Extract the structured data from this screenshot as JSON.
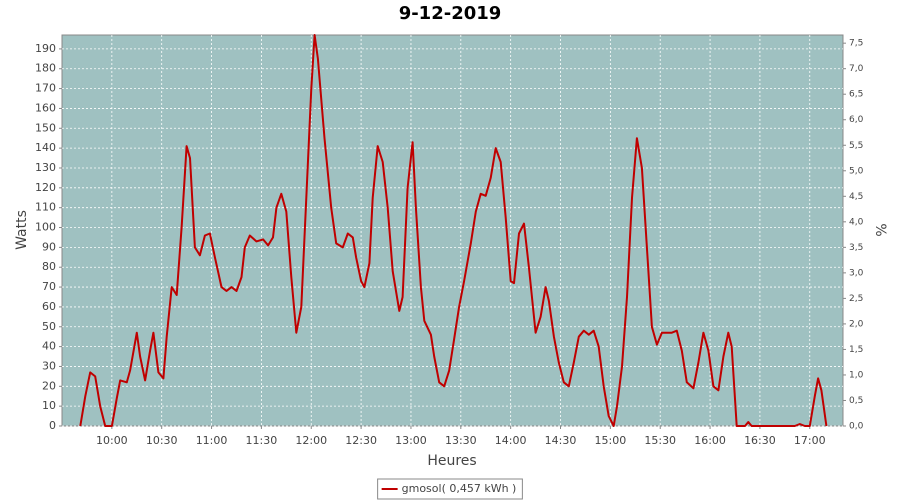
{
  "chart_data": {
    "type": "line",
    "title": "9-12-2019",
    "x_label": "Heures",
    "y_label": "Watts",
    "y2_label": "%",
    "x": [
      "09:41",
      "09:44",
      "09:47",
      "09:50",
      "09:53",
      "09:56",
      "10:00",
      "10:03",
      "10:05",
      "10:09",
      "10:11",
      "10:15",
      "10:17",
      "10:20",
      "10:23",
      "10:25",
      "10:28",
      "10:31",
      "10:33",
      "10:36",
      "10:39",
      "10:42",
      "10:45",
      "10:47",
      "10:50",
      "10:53",
      "10:56",
      "10:59",
      "11:02",
      "11:06",
      "11:09",
      "11:12",
      "11:15",
      "11:18",
      "11:20",
      "11:23",
      "11:27",
      "11:31",
      "11:34",
      "11:37",
      "11:39",
      "11:42",
      "11:45",
      "11:48",
      "11:51",
      "11:54",
      "11:57",
      "12:00",
      "12:02",
      "12:04",
      "12:08",
      "12:12",
      "12:15",
      "12:19",
      "12:22",
      "12:25",
      "12:27",
      "12:30",
      "12:32",
      "12:35",
      "12:37",
      "12:40",
      "12:43",
      "12:46",
      "12:49",
      "12:53",
      "12:55",
      "12:58",
      "13:01",
      "13:03",
      "13:06",
      "13:08",
      "13:12",
      "13:14",
      "13:17",
      "13:20",
      "13:23",
      "13:26",
      "13:29",
      "13:32",
      "13:36",
      "13:39",
      "13:42",
      "13:45",
      "13:48",
      "13:51",
      "13:54",
      "13:57",
      "14:00",
      "14:02",
      "14:05",
      "14:08",
      "14:11",
      "14:15",
      "14:18",
      "14:21",
      "14:23",
      "14:26",
      "14:29",
      "14:32",
      "14:35",
      "14:38",
      "14:41",
      "14:44",
      "14:47",
      "14:50",
      "14:53",
      "14:56",
      "14:59",
      "15:02",
      "15:04",
      "15:07",
      "15:10",
      "15:13",
      "15:16",
      "15:19",
      "15:22",
      "15:25",
      "15:28",
      "15:31",
      "15:34",
      "15:37",
      "15:40",
      "15:43",
      "15:46",
      "15:50",
      "15:53",
      "15:56",
      "15:59",
      "16:02",
      "16:05",
      "16:08",
      "16:11",
      "16:13",
      "16:16",
      "16:21",
      "16:23",
      "16:25",
      "16:51",
      "16:54",
      "16:57",
      "17:00",
      "17:03",
      "17:05",
      "17:07",
      "17:10"
    ],
    "series": [
      {
        "name": "gmosol( 0,457 kWh )",
        "color": "#c00000",
        "values": [
          0,
          15,
          27,
          25,
          10,
          0,
          0,
          14,
          23,
          22,
          28,
          47,
          35,
          23,
          38,
          47,
          27,
          24,
          45,
          70,
          66,
          100,
          141,
          135,
          90,
          86,
          96,
          97,
          85,
          70,
          68,
          70,
          68,
          75,
          90,
          96,
          93,
          94,
          91,
          95,
          110,
          117,
          108,
          75,
          47,
          60,
          115,
          170,
          197,
          185,
          145,
          110,
          92,
          90,
          97,
          95,
          85,
          73,
          70,
          82,
          115,
          141,
          133,
          110,
          78,
          58,
          65,
          120,
          143,
          110,
          70,
          53,
          46,
          35,
          22,
          20,
          28,
          44,
          60,
          73,
          92,
          108,
          117,
          116,
          125,
          140,
          133,
          105,
          73,
          72,
          97,
          102,
          80,
          47,
          55,
          70,
          63,
          45,
          32,
          22,
          20,
          32,
          45,
          48,
          46,
          48,
          40,
          20,
          5,
          0,
          10,
          30,
          65,
          115,
          145,
          130,
          90,
          50,
          41,
          47,
          47,
          47,
          48,
          38,
          22,
          19,
          32,
          47,
          38,
          20,
          18,
          35,
          47,
          40,
          0,
          0,
          2,
          0,
          0,
          1,
          0,
          0,
          15,
          24,
          18,
          0
        ]
      }
    ],
    "xlim": [
      "09:30",
      "17:20"
    ],
    "xticks": [
      "10:00",
      "10:30",
      "11:00",
      "11:30",
      "12:00",
      "12:30",
      "13:00",
      "13:30",
      "14:00",
      "14:30",
      "15:00",
      "15:30",
      "16:00",
      "16:30",
      "17:00"
    ],
    "ylim": [
      0,
      197
    ],
    "yticks": [
      0,
      10,
      20,
      30,
      40,
      50,
      60,
      70,
      80,
      90,
      100,
      110,
      120,
      130,
      140,
      150,
      160,
      170,
      180,
      190
    ],
    "y2lim": [
      0,
      7.66
    ],
    "y2ticks": [
      {
        "value": 0,
        "label": "0,0"
      },
      {
        "value": 0.5,
        "label": "0,5"
      },
      {
        "value": 1,
        "label": "1,0"
      },
      {
        "value": 1.5,
        "label": "1,5"
      },
      {
        "value": 2,
        "label": "2,0"
      },
      {
        "value": 2.5,
        "label": "2,5"
      },
      {
        "value": 3,
        "label": "3,0"
      },
      {
        "value": 3.5,
        "label": "3,5"
      },
      {
        "value": 4,
        "label": "4,0"
      },
      {
        "value": 4.5,
        "label": "4,5"
      },
      {
        "value": 5,
        "label": "5,0"
      },
      {
        "value": 5.5,
        "label": "5,5"
      },
      {
        "value": 6,
        "label": "6,0"
      },
      {
        "value": 6.5,
        "label": "6,5"
      },
      {
        "value": 7,
        "label": "7,0"
      },
      {
        "value": 7.5,
        "label": "7,5"
      }
    ],
    "grid": true,
    "plot_background": "#9fc1c1",
    "legend": "bottom"
  }
}
